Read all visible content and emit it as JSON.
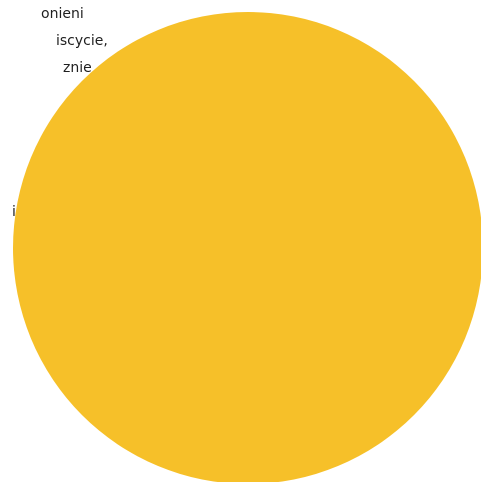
{
  "text_lines": [
    "onieni",
    "iscycie,",
    "znie",
    "i"
  ],
  "circle": {
    "color": "#f6c029"
  }
}
